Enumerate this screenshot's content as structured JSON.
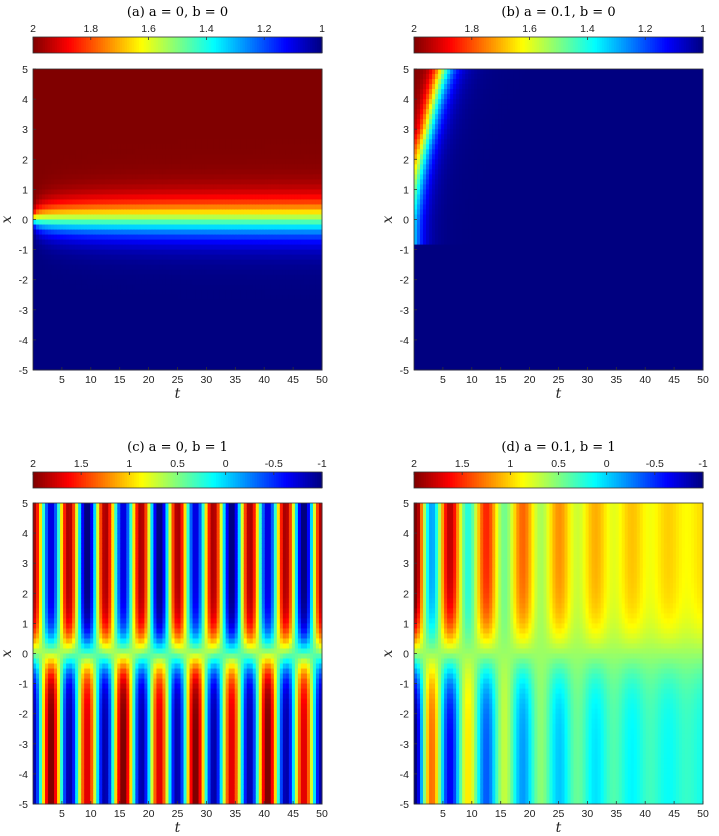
{
  "chart_data": [
    {
      "type": "heatmap",
      "title": "(a) a = 0,  b = 0",
      "xlabel": "t",
      "ylabel": "x",
      "xlim": [
        0,
        50
      ],
      "ylim": [
        -5,
        5
      ],
      "x_ticks": [
        5,
        10,
        15,
        20,
        25,
        30,
        35,
        40,
        45,
        50
      ],
      "y_ticks": [
        -5,
        -4,
        -3,
        -2,
        -1,
        0,
        1,
        2,
        3,
        4,
        5
      ],
      "colorbar": {
        "range": [
          1,
          2
        ],
        "reversed": true,
        "ticks": [
          2,
          1.8,
          1.6,
          1.4,
          1.2,
          1
        ],
        "colormap": "jet"
      },
      "field": {
        "model": "a",
        "a": 0,
        "b": 0
      }
    },
    {
      "type": "heatmap",
      "title": "(b) a = 0.1,  b = 0",
      "xlabel": "t",
      "ylabel": "x",
      "xlim": [
        0,
        50
      ],
      "ylim": [
        -5,
        5
      ],
      "x_ticks": [
        5,
        10,
        15,
        20,
        25,
        30,
        35,
        40,
        45,
        50
      ],
      "y_ticks": [
        -5,
        -4,
        -3,
        -2,
        -1,
        0,
        1,
        2,
        3,
        4,
        5
      ],
      "colorbar": {
        "range": [
          1,
          2
        ],
        "reversed": true,
        "ticks": [
          2,
          1.8,
          1.6,
          1.4,
          1.2,
          1
        ],
        "colormap": "jet"
      },
      "field": {
        "model": "b",
        "a": 0.1,
        "b": 0
      }
    },
    {
      "type": "heatmap",
      "title": "(c) a = 0,  b = 1",
      "xlabel": "t",
      "ylabel": "x",
      "xlim": [
        0,
        50
      ],
      "ylim": [
        -5,
        5
      ],
      "x_ticks": [
        5,
        10,
        15,
        20,
        25,
        30,
        35,
        40,
        45,
        50
      ],
      "y_ticks": [
        -5,
        -4,
        -3,
        -2,
        -1,
        0,
        1,
        2,
        3,
        4,
        5
      ],
      "colorbar": {
        "range": [
          -1,
          2
        ],
        "reversed": true,
        "ticks": [
          2,
          1.5,
          1,
          0.5,
          0,
          -0.5,
          -1
        ],
        "colormap": "jet"
      },
      "field": {
        "model": "c",
        "a": 0,
        "b": 1
      }
    },
    {
      "type": "heatmap",
      "title": "(d) a = 0.1,  b = 1",
      "xlabel": "t",
      "ylabel": "x",
      "xlim": [
        0,
        50
      ],
      "ylim": [
        -5,
        5
      ],
      "x_ticks": [
        5,
        10,
        15,
        20,
        25,
        30,
        35,
        40,
        45,
        50
      ],
      "y_ticks": [
        -5,
        -4,
        -3,
        -2,
        -1,
        0,
        1,
        2,
        3,
        4,
        5
      ],
      "colorbar": {
        "range": [
          -1,
          2
        ],
        "reversed": true,
        "ticks": [
          2,
          1.5,
          1,
          0.5,
          0,
          -0.5,
          -1
        ],
        "colormap": "jet"
      },
      "field": {
        "model": "d",
        "a": 0.1,
        "b": 1
      }
    }
  ]
}
